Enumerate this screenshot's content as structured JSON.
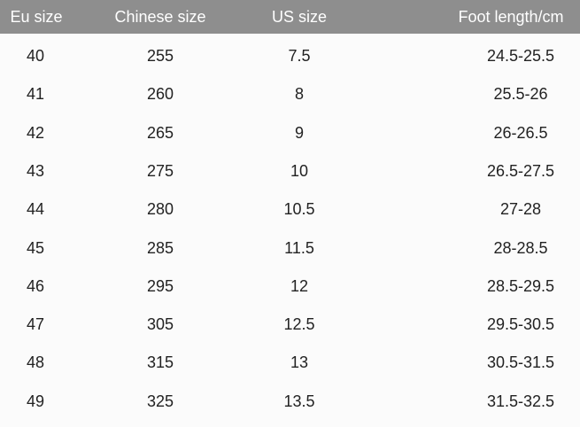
{
  "table": {
    "headers": [
      "Eu size",
      "Chinese size",
      "US size",
      "Foot length/cm"
    ],
    "rows": [
      [
        "40",
        "255",
        "7.5",
        "24.5-25.5"
      ],
      [
        "41",
        "260",
        "8",
        "25.5-26"
      ],
      [
        "42",
        "265",
        "9",
        "26-26.5"
      ],
      [
        "43",
        "275",
        "10",
        "26.5-27.5"
      ],
      [
        "44",
        "280",
        "10.5",
        "27-28"
      ],
      [
        "45",
        "285",
        "11.5",
        "28-28.5"
      ],
      [
        "46",
        "295",
        "12",
        "28.5-29.5"
      ],
      [
        "47",
        "305",
        "12.5",
        "29.5-30.5"
      ],
      [
        "48",
        "315",
        "13",
        "30.5-31.5"
      ],
      [
        "49",
        "325",
        "13.5",
        "31.5-32.5"
      ]
    ]
  },
  "colors": {
    "header_bg": "#8e8e8e",
    "header_text": "#ffffff",
    "body_text": "#222222"
  }
}
